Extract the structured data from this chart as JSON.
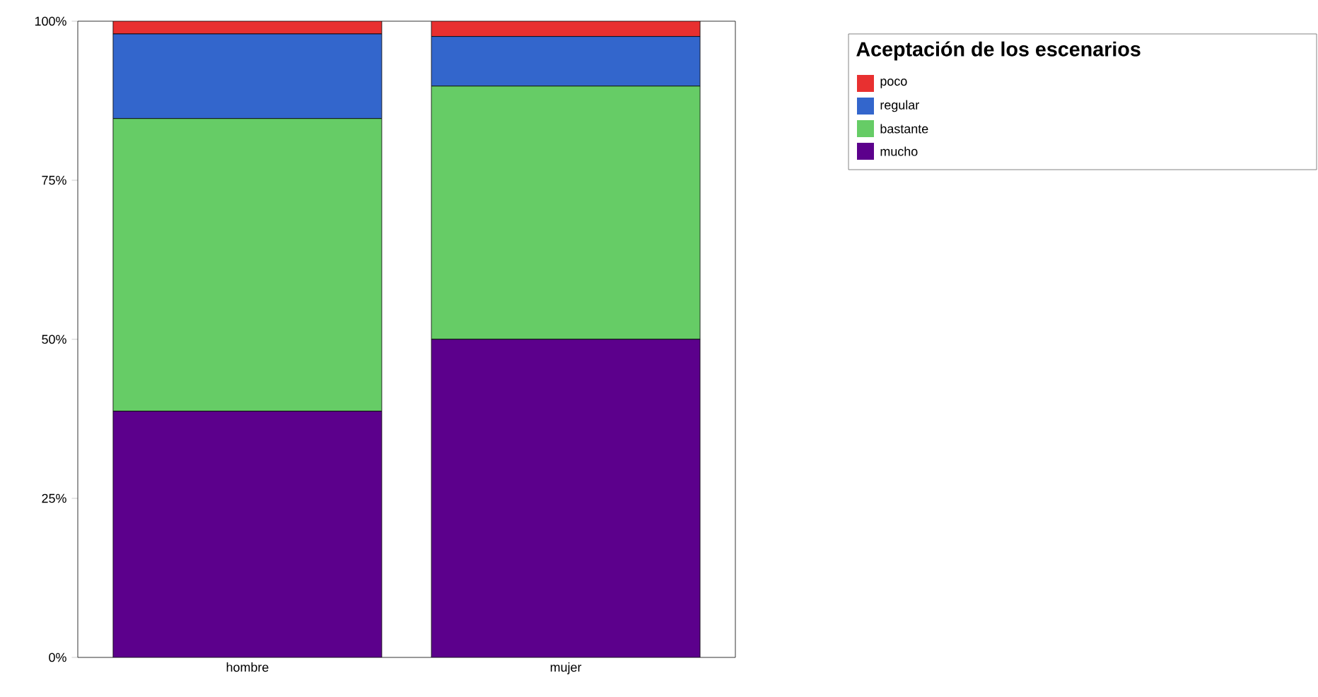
{
  "chart_data": {
    "type": "bar",
    "stacked": true,
    "legend_title": "Aceptación de los escenarios",
    "categories": [
      "hombre",
      "mujer"
    ],
    "series": [
      {
        "name": "mucho",
        "color": "#5c008c",
        "values": [
          38.7,
          50.0
        ]
      },
      {
        "name": "bastante",
        "color": "#66cc66",
        "values": [
          46.0,
          39.8
        ]
      },
      {
        "name": "regular",
        "color": "#3366cc",
        "values": [
          13.3,
          7.8
        ]
      },
      {
        "name": "poco",
        "color": "#e83030",
        "values": [
          2.0,
          2.4
        ]
      }
    ],
    "ylim": [
      0,
      100
    ],
    "yticks": [
      {
        "value": 0,
        "label": "0%"
      },
      {
        "value": 25,
        "label": "25%"
      },
      {
        "value": 50,
        "label": "50%"
      },
      {
        "value": 75,
        "label": "75%"
      },
      {
        "value": 100,
        "label": "100%"
      }
    ],
    "grid": false,
    "legend": "top right"
  }
}
